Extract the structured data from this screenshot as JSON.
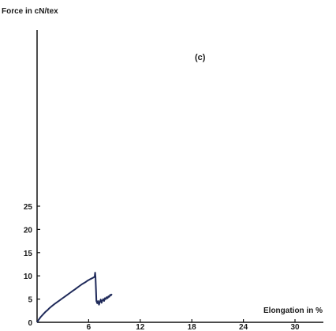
{
  "chart_data": {
    "type": "line",
    "title": "",
    "panel_label": "(c)",
    "ylabel": "Force in cN/tex",
    "xlabel": "Elongation in %",
    "xlim": [
      0,
      30
    ],
    "ylim": [
      0,
      25
    ],
    "x_ticks": [
      6,
      12,
      18,
      24,
      30
    ],
    "y_ticks": [
      0,
      5,
      10,
      15,
      20,
      25
    ],
    "grid": false,
    "series": [
      {
        "color": "#1f2a5a",
        "points": [
          [
            0,
            0
          ],
          [
            0.2,
            0.6
          ],
          [
            0.4,
            1.1
          ],
          [
            0.6,
            1.5
          ],
          [
            0.8,
            1.9
          ],
          [
            1.0,
            2.3
          ],
          [
            1.2,
            2.6
          ],
          [
            1.4,
            3.0
          ],
          [
            1.6,
            3.3
          ],
          [
            1.8,
            3.6
          ],
          [
            2.0,
            3.9
          ],
          [
            2.3,
            4.3
          ],
          [
            2.6,
            4.7
          ],
          [
            2.9,
            5.1
          ],
          [
            3.2,
            5.5
          ],
          [
            3.5,
            5.9
          ],
          [
            3.8,
            6.3
          ],
          [
            4.1,
            6.7
          ],
          [
            4.4,
            7.1
          ],
          [
            4.7,
            7.5
          ],
          [
            5.0,
            7.9
          ],
          [
            5.3,
            8.3
          ],
          [
            5.6,
            8.6
          ],
          [
            5.9,
            9.0
          ],
          [
            6.2,
            9.3
          ],
          [
            6.5,
            9.6
          ],
          [
            6.7,
            9.8
          ],
          [
            6.75,
            10.7
          ],
          [
            6.8,
            9.7
          ],
          [
            6.85,
            7.0
          ],
          [
            6.9,
            4.6
          ],
          [
            7.0,
            4.1
          ],
          [
            7.1,
            4.6
          ],
          [
            7.2,
            3.8
          ],
          [
            7.3,
            4.4
          ],
          [
            7.4,
            4.9
          ],
          [
            7.5,
            4.2
          ],
          [
            7.6,
            4.7
          ],
          [
            7.7,
            5.0
          ],
          [
            7.8,
            4.6
          ],
          [
            7.9,
            5.2
          ],
          [
            8.0,
            5.0
          ],
          [
            8.1,
            5.4
          ],
          [
            8.2,
            5.2
          ],
          [
            8.3,
            5.6
          ],
          [
            8.4,
            5.5
          ],
          [
            8.5,
            5.9
          ],
          [
            8.6,
            5.8
          ],
          [
            8.7,
            6.1
          ]
        ]
      }
    ]
  }
}
